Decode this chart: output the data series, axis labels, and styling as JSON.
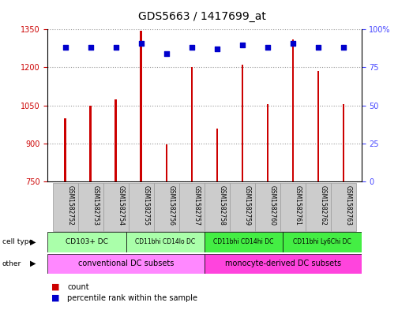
{
  "title": "GDS5663 / 1417699_at",
  "samples": [
    "GSM1582752",
    "GSM1582753",
    "GSM1582754",
    "GSM1582755",
    "GSM1582756",
    "GSM1582757",
    "GSM1582758",
    "GSM1582759",
    "GSM1582760",
    "GSM1582761",
    "GSM1582762",
    "GSM1582763"
  ],
  "counts": [
    1000,
    1050,
    1075,
    1345,
    895,
    1200,
    960,
    1210,
    1055,
    1310,
    1185,
    1055
  ],
  "percentiles": [
    88,
    88,
    88,
    91,
    84,
    88,
    87,
    90,
    88,
    91,
    88,
    88
  ],
  "ylim_left": [
    750,
    1350
  ],
  "ylim_right": [
    0,
    100
  ],
  "yticks_left": [
    750,
    900,
    1050,
    1200,
    1350
  ],
  "yticks_right": [
    0,
    25,
    50,
    75,
    100
  ],
  "ytick_right_labels": [
    "0",
    "25",
    "50",
    "75",
    "100%"
  ],
  "cell_type_groups": [
    {
      "label": "CD103+ DC",
      "start": 0,
      "end": 3,
      "color": "#AAFFAA"
    },
    {
      "label": "CD11bhi CD14lo DC",
      "start": 3,
      "end": 6,
      "color": "#AAFFAA"
    },
    {
      "label": "CD11bhi CD14hi DC",
      "start": 6,
      "end": 9,
      "color": "#44EE44"
    },
    {
      "label": "CD11bhi Ly6Chi DC",
      "start": 9,
      "end": 12,
      "color": "#44EE44"
    }
  ],
  "other_groups": [
    {
      "label": "conventional DC subsets",
      "start": 0,
      "end": 6,
      "color": "#FF88FF"
    },
    {
      "label": "monocyte-derived DC subsets",
      "start": 6,
      "end": 12,
      "color": "#FF44DD"
    }
  ],
  "bar_color": "#CC0000",
  "bar_width": 0.08,
  "dot_color": "#0000CC",
  "dot_size": 20,
  "grid_color": "#999999",
  "label_color_left": "#CC0000",
  "label_color_right": "#4444FF",
  "sample_bg_color": "#CCCCCC",
  "sample_border_color": "#999999",
  "fig_bg": "#FFFFFF"
}
